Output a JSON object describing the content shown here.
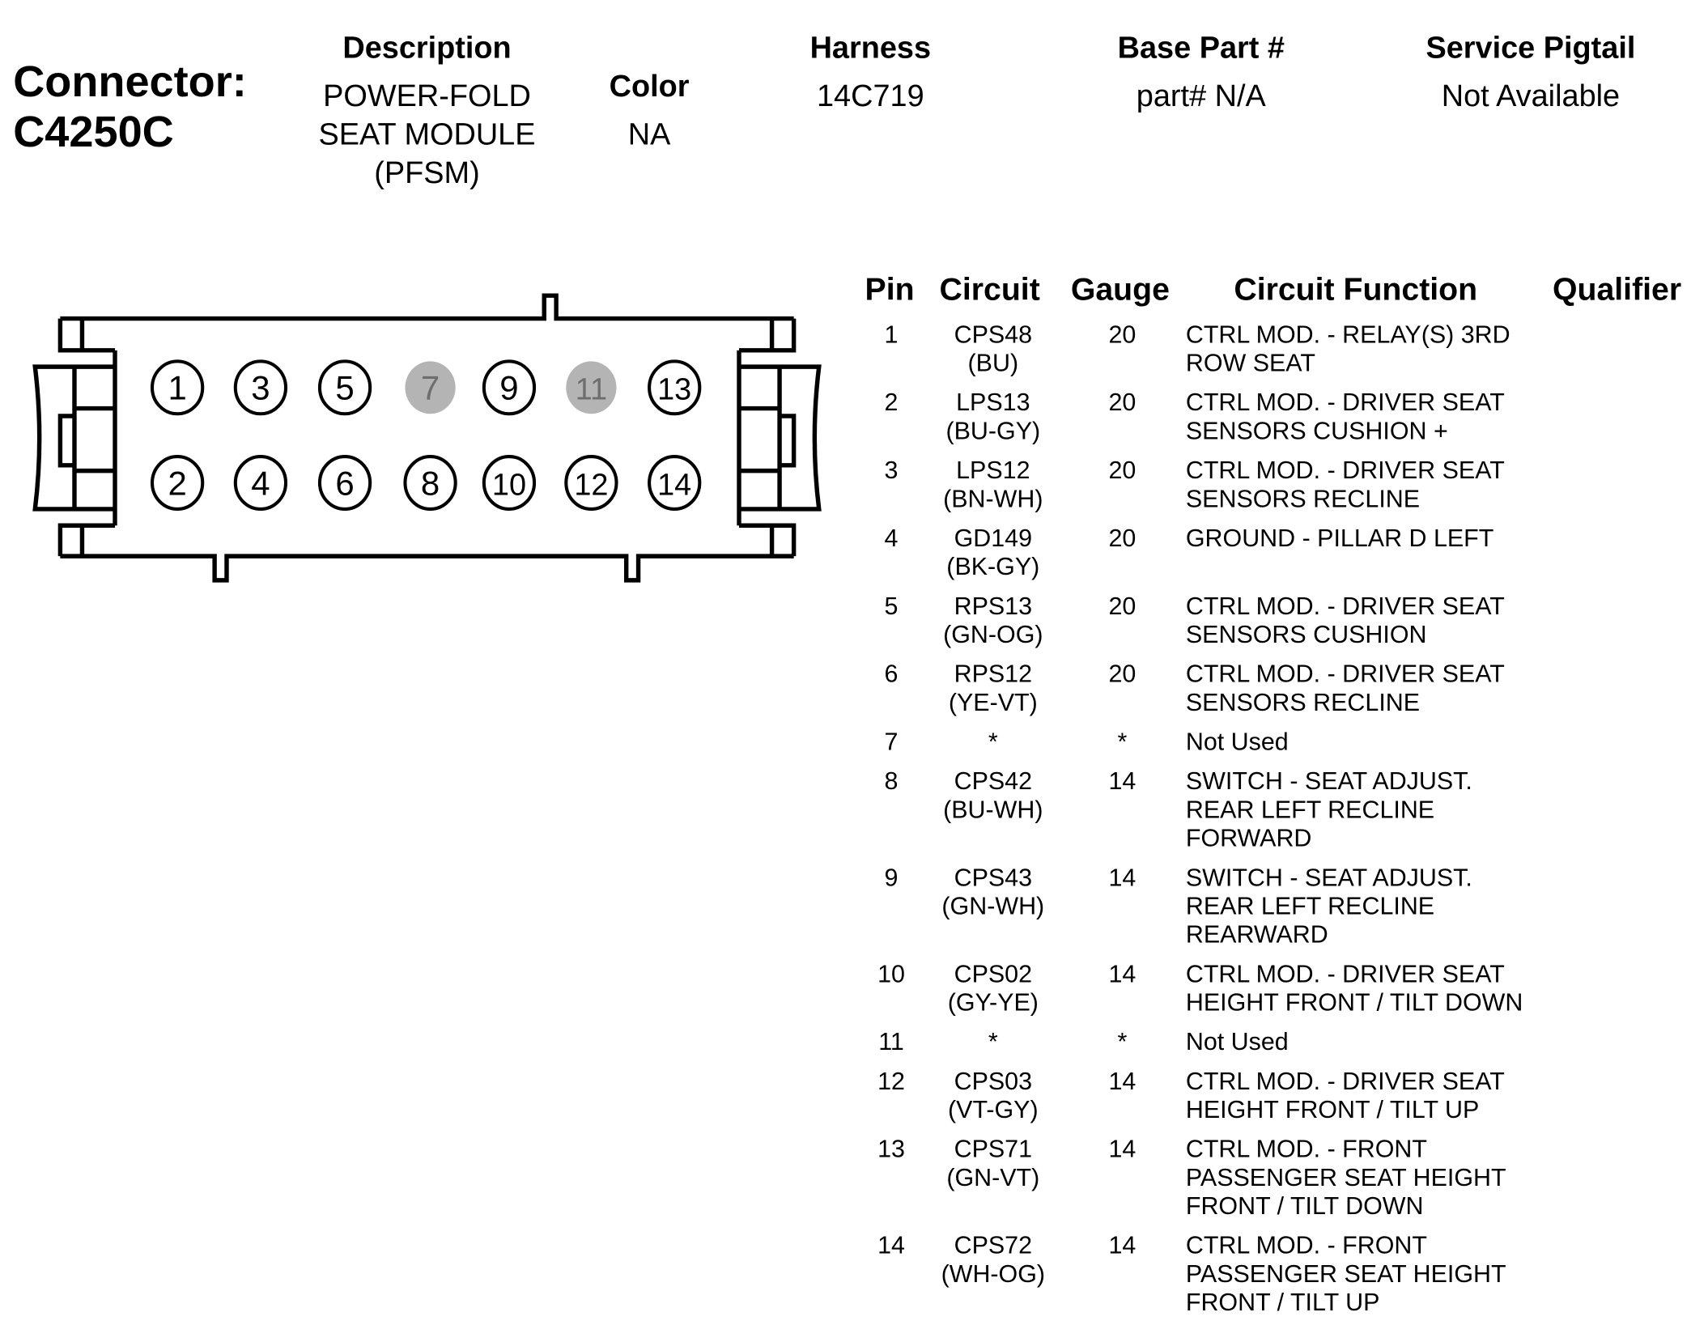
{
  "connector": {
    "label": "Connector:",
    "id": "C4250C"
  },
  "header": {
    "description": {
      "label": "Description",
      "lines": [
        "POWER-FOLD",
        "SEAT MODULE",
        "(PFSM)"
      ]
    },
    "color": {
      "label": "Color",
      "value": "NA"
    },
    "harness": {
      "label": "Harness",
      "value": "14C719"
    },
    "base_part": {
      "label": "Base Part #",
      "value": "part# N/A"
    },
    "service_pigtail": {
      "label": "Service Pigtail",
      "value": "Not Available"
    }
  },
  "diagram": {
    "pins_top": [
      "1",
      "3",
      "5",
      "7",
      "9",
      "11",
      "13"
    ],
    "pins_bottom": [
      "2",
      "4",
      "6",
      "8",
      "10",
      "12",
      "14"
    ],
    "unused_pins": [
      "7",
      "11"
    ],
    "unused_fill": "#b4b4b4",
    "unused_text": "#6e6e6e"
  },
  "table": {
    "headers": {
      "pin": "Pin",
      "circuit": "Circuit",
      "gauge": "Gauge",
      "function": "Circuit Function",
      "qualifier": "Qualifier"
    },
    "rows": [
      {
        "pin": "1",
        "circuit": "CPS48",
        "color": "(BU)",
        "gauge": "20",
        "function": [
          "CTRL MOD. - RELAY(S) 3RD",
          "ROW SEAT"
        ]
      },
      {
        "pin": "2",
        "circuit": "LPS13",
        "color": "(BU-GY)",
        "gauge": "20",
        "function": [
          "CTRL MOD. - DRIVER SEAT",
          "SENSORS CUSHION +"
        ]
      },
      {
        "pin": "3",
        "circuit": "LPS12",
        "color": "(BN-WH)",
        "gauge": "20",
        "function": [
          "CTRL MOD. - DRIVER SEAT",
          "SENSORS RECLINE"
        ]
      },
      {
        "pin": "4",
        "circuit": "GD149",
        "color": "(BK-GY)",
        "gauge": "20",
        "function": [
          "GROUND - PILLAR D LEFT"
        ]
      },
      {
        "pin": "5",
        "circuit": "RPS13",
        "color": "(GN-OG)",
        "gauge": "20",
        "function": [
          "CTRL MOD. - DRIVER SEAT",
          "SENSORS CUSHION"
        ]
      },
      {
        "pin": "6",
        "circuit": "RPS12",
        "color": "(YE-VT)",
        "gauge": "20",
        "function": [
          "CTRL MOD. - DRIVER SEAT",
          "SENSORS RECLINE"
        ]
      },
      {
        "pin": "7",
        "circuit": "*",
        "color": "",
        "gauge": "*",
        "function": [
          "Not Used"
        ]
      },
      {
        "pin": "8",
        "circuit": "CPS42",
        "color": "(BU-WH)",
        "gauge": "14",
        "function": [
          "SWITCH - SEAT ADJUST.",
          "REAR LEFT RECLINE",
          "FORWARD"
        ]
      },
      {
        "pin": "9",
        "circuit": "CPS43",
        "color": "(GN-WH)",
        "gauge": "14",
        "function": [
          "SWITCH - SEAT ADJUST.",
          "REAR LEFT RECLINE",
          "REARWARD"
        ]
      },
      {
        "pin": "10",
        "circuit": "CPS02",
        "color": "(GY-YE)",
        "gauge": "14",
        "function": [
          "CTRL MOD. - DRIVER SEAT",
          "HEIGHT FRONT / TILT DOWN"
        ]
      },
      {
        "pin": "11",
        "circuit": "*",
        "color": "",
        "gauge": "*",
        "function": [
          "Not Used"
        ]
      },
      {
        "pin": "12",
        "circuit": "CPS03",
        "color": "(VT-GY)",
        "gauge": "14",
        "function": [
          "CTRL MOD. - DRIVER SEAT",
          "HEIGHT FRONT / TILT UP"
        ]
      },
      {
        "pin": "13",
        "circuit": "CPS71",
        "color": "(GN-VT)",
        "gauge": "14",
        "function": [
          "CTRL MOD. - FRONT",
          "PASSENGER SEAT HEIGHT",
          "FRONT / TILT DOWN"
        ]
      },
      {
        "pin": "14",
        "circuit": "CPS72",
        "color": "(WH-OG)",
        "gauge": "14",
        "function": [
          "CTRL MOD. - FRONT",
          "PASSENGER SEAT HEIGHT",
          "FRONT / TILT UP"
        ]
      }
    ]
  }
}
